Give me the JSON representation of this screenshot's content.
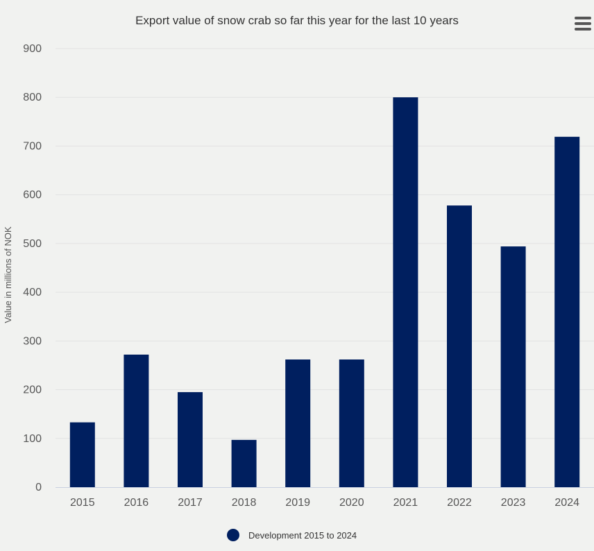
{
  "chart_data": {
    "type": "bar",
    "title": "Export value of snow crab so far this year for the last 10 years",
    "ylabel": "Value in millions of NOK",
    "xlabel": "",
    "categories": [
      "2015",
      "2016",
      "2017",
      "2018",
      "2019",
      "2020",
      "2021",
      "2022",
      "2023",
      "2024"
    ],
    "series": [
      {
        "name": "Development 2015 to 2024",
        "values": [
          133,
          272,
          195,
          97,
          262,
          262,
          800,
          578,
          494,
          719
        ],
        "color": "#001f5f"
      }
    ],
    "ylim": [
      0,
      900
    ],
    "yticks": [
      "0",
      "100",
      "200",
      "300",
      "400",
      "500",
      "600",
      "700",
      "800",
      "900"
    ],
    "grid": true,
    "legend_position": "bottom-center"
  },
  "menu": {
    "icon": "hamburger-menu-icon"
  }
}
